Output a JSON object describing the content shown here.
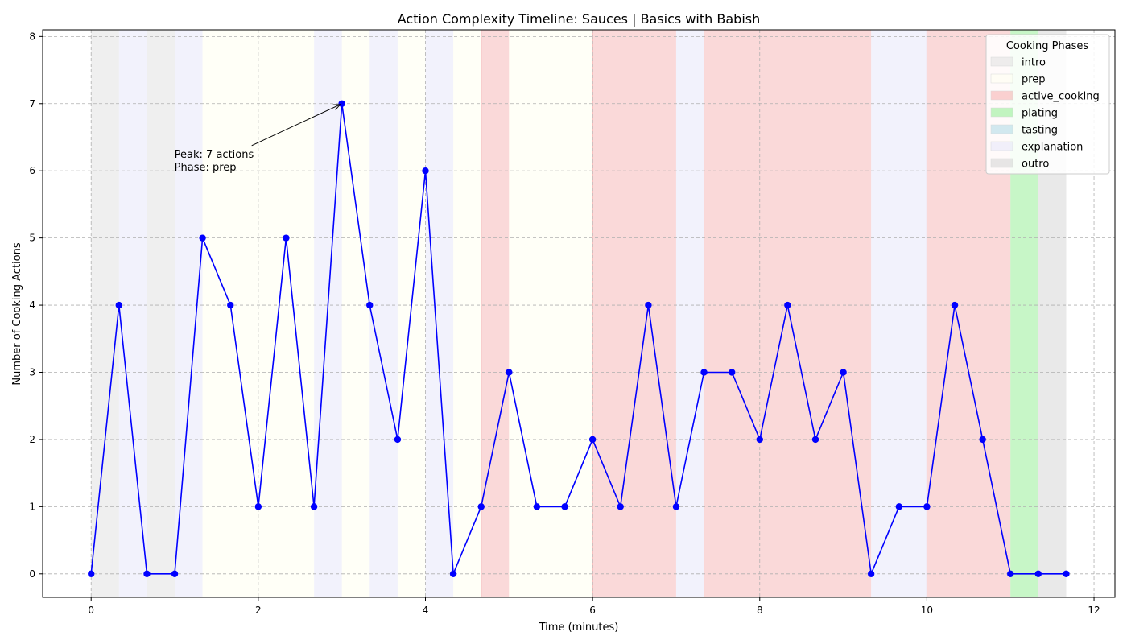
{
  "chart_data": {
    "type": "line",
    "title": "Action Complexity Timeline: Sauces | Basics with Babish",
    "xlabel": "Time (minutes)",
    "ylabel": "Number of Cooking Actions",
    "xlim": [
      -0.58,
      12.25
    ],
    "ylim": [
      -0.35,
      8.1
    ],
    "xticks": [
      "0",
      "2",
      "4",
      "6",
      "8",
      "10",
      "12"
    ],
    "yticks": [
      "0",
      "1",
      "2",
      "3",
      "4",
      "5",
      "6",
      "7",
      "8"
    ],
    "grid": true,
    "series": [
      {
        "x": [
          0,
          0.333,
          0.667,
          1.0,
          1.333,
          1.667,
          2.0,
          2.333,
          2.667,
          3.0,
          3.333,
          3.667,
          4.0,
          4.333,
          4.667,
          5.0,
          5.333,
          5.667,
          6.0,
          6.333,
          6.667,
          7.0,
          7.333,
          7.667,
          8.0,
          8.333,
          8.667,
          9.0,
          9.333,
          9.667,
          10.0,
          10.333,
          10.667,
          11.0,
          11.333,
          11.667
        ],
        "y": [
          0,
          4,
          0,
          0,
          5,
          4,
          1,
          5,
          1,
          7,
          4,
          2,
          6,
          0,
          1,
          3,
          1,
          1,
          2,
          1,
          4,
          1,
          3,
          3,
          2,
          4,
          2,
          3,
          0,
          1,
          1,
          4,
          2,
          0,
          0,
          0
        ],
        "color": "#0000ff"
      }
    ],
    "phase_spans": [
      {
        "start": 0,
        "end": 0.333,
        "phase": "intro"
      },
      {
        "start": 0.333,
        "end": 0.667,
        "phase": "explanation"
      },
      {
        "start": 0.667,
        "end": 1.0,
        "phase": "intro"
      },
      {
        "start": 1.0,
        "end": 1.333,
        "phase": "explanation"
      },
      {
        "start": 1.333,
        "end": 2.667,
        "phase": "prep"
      },
      {
        "start": 2.667,
        "end": 3.0,
        "phase": "explanation"
      },
      {
        "start": 3.0,
        "end": 3.333,
        "phase": "prep"
      },
      {
        "start": 3.333,
        "end": 3.667,
        "phase": "explanation"
      },
      {
        "start": 3.667,
        "end": 4.0,
        "phase": "prep"
      },
      {
        "start": 4.0,
        "end": 4.333,
        "phase": "explanation"
      },
      {
        "start": 4.333,
        "end": 4.667,
        "phase": "prep"
      },
      {
        "start": 4.667,
        "end": 5.0,
        "phase": "active_cooking"
      },
      {
        "start": 5.0,
        "end": 6.0,
        "phase": "prep"
      },
      {
        "start": 6.0,
        "end": 7.0,
        "phase": "active_cooking"
      },
      {
        "start": 7.0,
        "end": 7.333,
        "phase": "explanation"
      },
      {
        "start": 7.333,
        "end": 9.333,
        "phase": "active_cooking"
      },
      {
        "start": 9.333,
        "end": 10.0,
        "phase": "explanation"
      },
      {
        "start": 10.0,
        "end": 11.0,
        "phase": "active_cooking"
      },
      {
        "start": 11.0,
        "end": 11.333,
        "phase": "plating"
      },
      {
        "start": 11.333,
        "end": 11.667,
        "phase": "outro"
      }
    ],
    "legend": {
      "title": "Cooking Phases",
      "placement": "top-right",
      "entries": [
        {
          "label": "intro",
          "color": "#e0e0e0"
        },
        {
          "label": "prep",
          "color": "#fffff0"
        },
        {
          "label": "active_cooking",
          "color": "#f08080"
        },
        {
          "label": "plating",
          "color": "#90ee90"
        },
        {
          "label": "tasting",
          "color": "#add8e6"
        },
        {
          "label": "explanation",
          "color": "#e6e6fa"
        },
        {
          "label": "outro",
          "color": "#d3d3d3"
        }
      ]
    },
    "annotation": {
      "line1": "Peak: 7 actions",
      "line2": "Phase: prep",
      "x": 3.0,
      "y": 7
    }
  }
}
